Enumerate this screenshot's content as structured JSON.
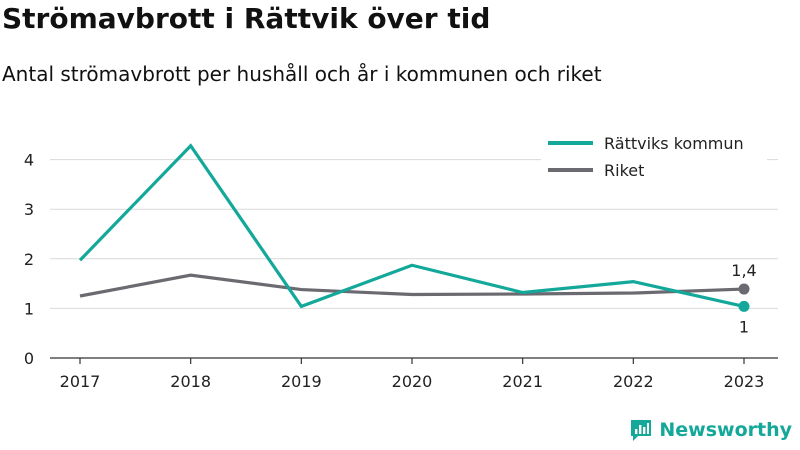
{
  "title": "Strömavbrott i Rättvik över tid",
  "subtitle": "Antal strömavbrott per hushåll och år i kommunen och riket",
  "brand": "Newsworthy",
  "colors": {
    "kommun": "#13a89a",
    "riket": "#6b6a70",
    "grid": "#d9d9d9",
    "axis": "#333333",
    "brand": "#13a89a"
  },
  "chart_data": {
    "type": "line",
    "title": "Strömavbrott i Rättvik över tid",
    "subtitle": "Antal strömavbrott per hushåll och år i kommunen och riket",
    "x": [
      "2017",
      "2018",
      "2019",
      "2020",
      "2021",
      "2022",
      "2023"
    ],
    "y_ticks": [
      0,
      1,
      2,
      3,
      4
    ],
    "ylim": [
      0,
      4.4
    ],
    "grid": "horizontal",
    "legend_position": "top-right",
    "series": [
      {
        "name": "Rättviks kommun",
        "color": "#13a89a",
        "values": [
          1.97,
          4.28,
          1.04,
          1.87,
          1.32,
          1.54,
          1.04
        ],
        "end_label": "1"
      },
      {
        "name": "Riket",
        "color": "#6b6a70",
        "values": [
          1.25,
          1.67,
          1.38,
          1.28,
          1.29,
          1.31,
          1.39
        ],
        "end_label": "1,4"
      }
    ]
  }
}
